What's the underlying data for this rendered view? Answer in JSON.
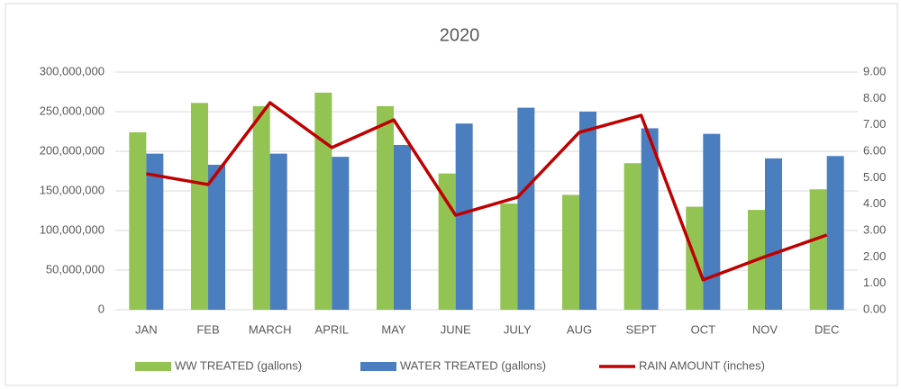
{
  "chart_data": {
    "type": "bar_line",
    "title": "2020",
    "categories": [
      "JAN",
      "FEB",
      "MARCH",
      "APRIL",
      "MAY",
      "JUNE",
      "JULY",
      "AUG",
      "SEPT",
      "OCT",
      "NOV",
      "DEC"
    ],
    "series": [
      {
        "name": "WW TREATED (gallons)",
        "color": "#92c353",
        "type": "bar",
        "values": [
          224000000,
          261000000,
          257000000,
          274000000,
          257000000,
          172000000,
          134000000,
          145000000,
          185000000,
          130000000,
          126000000,
          152000000
        ]
      },
      {
        "name": "WATER TREATED (gallons)",
        "color": "#4a7ebf",
        "type": "bar",
        "values": [
          197000000,
          183000000,
          197000000,
          193000000,
          208000000,
          235000000,
          255000000,
          250000000,
          229000000,
          222000000,
          191000000,
          194000000
        ]
      },
      {
        "name": "RAIN AMOUNT (inches)",
        "color": "#c00000",
        "type": "line",
        "axis": "y2",
        "values": [
          5.15,
          4.74,
          7.84,
          6.14,
          7.19,
          3.58,
          4.26,
          6.72,
          7.36,
          1.13,
          2.01,
          2.83
        ]
      }
    ],
    "ylim": [
      0,
      300000000
    ],
    "yticks": [
      0,
      {
        "value": 50000000,
        "label": "50,000,000"
      },
      {
        "value": 100000000,
        "label": "100,000,000"
      },
      {
        "value": 150000000,
        "label": "150,000,000"
      },
      {
        "value": 200000000,
        "label": "200,000,000"
      },
      {
        "value": 250000000,
        "label": "250,000,000"
      },
      {
        "value": 300000000,
        "label": "300,000,000"
      }
    ],
    "y2lim": [
      0,
      9
    ],
    "y2ticks": [
      {
        "value": 0,
        "label": "0.00"
      },
      {
        "value": 1,
        "label": "1.00"
      },
      {
        "value": 2,
        "label": "2.00"
      },
      {
        "value": 3,
        "label": "3.00"
      },
      {
        "value": 4,
        "label": "4.00"
      },
      {
        "value": 5,
        "label": "5.00"
      },
      {
        "value": 6,
        "label": "6.00"
      },
      {
        "value": 7,
        "label": "7.00"
      },
      {
        "value": 8,
        "label": "8.00"
      },
      {
        "value": 9,
        "label": "9.00"
      }
    ],
    "grid": true,
    "legend": "bottom"
  }
}
